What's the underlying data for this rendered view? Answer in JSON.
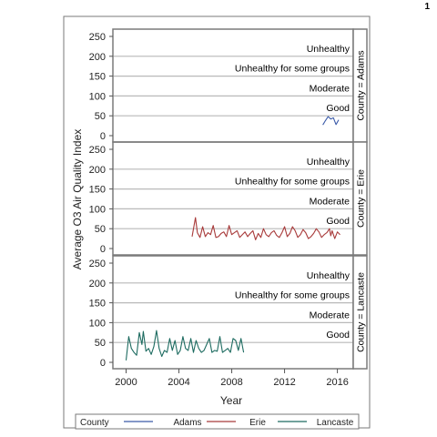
{
  "page_number": "1",
  "chart_data": {
    "type": "line",
    "panel_variable": "County",
    "ylabel": "Average O3 Air Quality Index",
    "xlabel": "Year",
    "ylim": [
      0,
      250
    ],
    "yticks": [
      0,
      50,
      100,
      150,
      200,
      250
    ],
    "xlim": [
      1999.0,
      2017.2
    ],
    "xticks": [
      2000,
      2004,
      2008,
      2012,
      2016
    ],
    "reference_lines": [
      {
        "value": 50,
        "label": "Good"
      },
      {
        "value": 100,
        "label": "Moderate"
      },
      {
        "value": 150,
        "label": "Unhealthy for some groups"
      },
      {
        "value": 200,
        "label": "Unhealthy"
      }
    ],
    "legend": {
      "title": "County",
      "position": "bottom"
    },
    "panels": [
      {
        "label": "County = Adams",
        "series": {
          "name": "Adams",
          "color": "#3a5aa8",
          "x": [
            2014.9,
            2015.1,
            2015.3,
            2015.5,
            2015.7,
            2015.9,
            2016.1
          ],
          "y": [
            27,
            38,
            48,
            42,
            45,
            28,
            40
          ]
        }
      },
      {
        "label": "County = Erie",
        "series": {
          "name": "Erie",
          "color": "#a83a3a",
          "x": [
            2005.0,
            2005.25,
            2005.4,
            2005.6,
            2005.8,
            2006.0,
            2006.2,
            2006.4,
            2006.6,
            2006.8,
            2007.0,
            2007.2,
            2007.4,
            2007.6,
            2007.8,
            2008.0,
            2008.2,
            2008.4,
            2008.6,
            2008.8,
            2009.0,
            2009.2,
            2009.4,
            2009.6,
            2009.8,
            2010.0,
            2010.2,
            2010.4,
            2010.6,
            2010.8,
            2011.0,
            2011.2,
            2011.4,
            2011.6,
            2011.8,
            2012.0,
            2012.2,
            2012.4,
            2012.6,
            2012.8,
            2013.0,
            2013.2,
            2013.4,
            2013.6,
            2013.8,
            2014.0,
            2014.2,
            2014.4,
            2014.6,
            2014.8,
            2015.0,
            2015.2,
            2015.4,
            2015.5,
            2015.6,
            2015.8,
            2016.0,
            2016.2
          ],
          "y": [
            30,
            78,
            40,
            28,
            55,
            30,
            40,
            35,
            58,
            28,
            30,
            38,
            42,
            30,
            58,
            35,
            40,
            45,
            28,
            35,
            42,
            30,
            38,
            45,
            22,
            38,
            28,
            50,
            35,
            30,
            40,
            45,
            33,
            28,
            40,
            55,
            30,
            38,
            55,
            45,
            28,
            35,
            48,
            40,
            25,
            30,
            38,
            50,
            42,
            28,
            35,
            40,
            50,
            32,
            45,
            25,
            42,
            35
          ]
        }
      },
      {
        "label": "County = Lancaste",
        "series": {
          "name": "Lancaste",
          "color": "#1d6b60",
          "x": [
            2000.0,
            2000.2,
            2000.4,
            2000.6,
            2000.8,
            2001.0,
            2001.2,
            2001.3,
            2001.5,
            2001.7,
            2001.9,
            2002.1,
            2002.3,
            2002.5,
            2002.7,
            2002.9,
            2003.1,
            2003.3,
            2003.5,
            2003.7,
            2003.9,
            2004.1,
            2004.3,
            2004.5,
            2004.7,
            2004.9,
            2005.1,
            2005.3,
            2005.5,
            2005.7,
            2005.9,
            2006.1,
            2006.3,
            2006.5,
            2006.7,
            2006.9,
            2007.1,
            2007.3,
            2007.5,
            2007.7,
            2007.9,
            2008.1,
            2008.3,
            2008.5,
            2008.7,
            2008.9
          ],
          "y": [
            5,
            65,
            35,
            25,
            18,
            75,
            45,
            78,
            28,
            35,
            20,
            40,
            80,
            35,
            15,
            30,
            25,
            60,
            30,
            55,
            20,
            30,
            65,
            35,
            30,
            60,
            25,
            55,
            35,
            25,
            30,
            45,
            60,
            25,
            30,
            28,
            65,
            25,
            30,
            35,
            25,
            60,
            55,
            30,
            60,
            25
          ]
        }
      }
    ]
  }
}
